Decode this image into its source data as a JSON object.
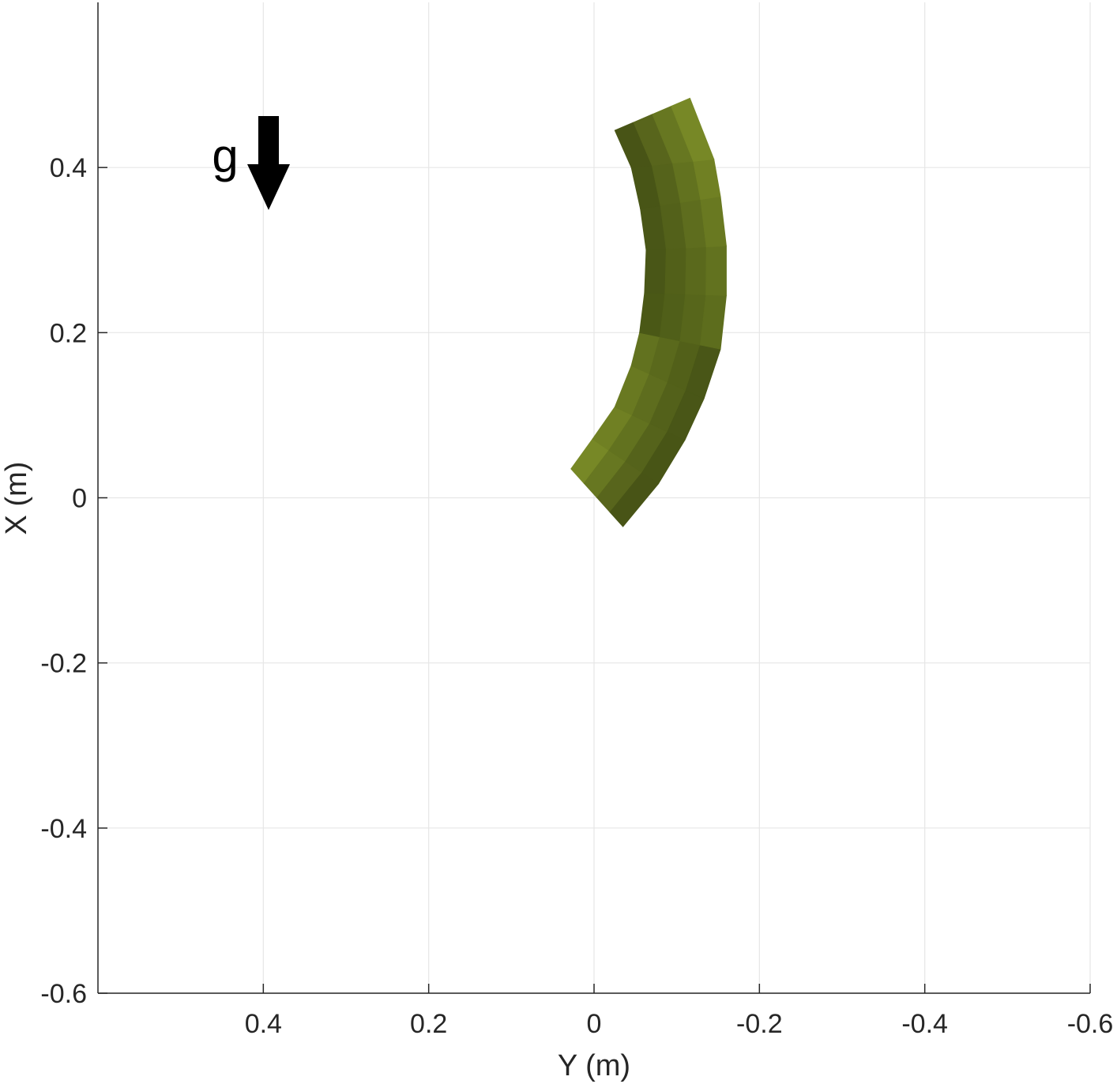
{
  "chart_data": {
    "type": "surface-topview",
    "xlabel": "Y (m)",
    "ylabel": "X (m)",
    "xlim": [
      0.6,
      -0.6
    ],
    "ylim": [
      -0.6,
      0.6
    ],
    "x_reversed": true,
    "xticks": [
      0.4,
      0.2,
      0,
      -0.2,
      -0.4,
      -0.6
    ],
    "xtick_labels": [
      "0.4",
      "0.2",
      "0",
      "-0.2",
      "-0.4",
      "-0.6"
    ],
    "yticks": [
      0.4,
      0.2,
      0,
      -0.2,
      -0.4,
      -0.6
    ],
    "ytick_labels": [
      "0.4",
      "0.2",
      "0",
      "-0.2",
      "-0.4",
      "-0.6"
    ],
    "grid": true,
    "annotation": {
      "text": "g",
      "arrow_direction": "down",
      "y": 0.4,
      "x": 0.4
    },
    "body": {
      "description_units": "Y, X in meters",
      "left_edge": [
        [
          0.028,
          0.035
        ],
        [
          0.002,
          0.071
        ],
        [
          -0.025,
          0.11
        ],
        [
          -0.045,
          0.16
        ],
        [
          -0.055,
          0.2
        ],
        [
          -0.061,
          0.248
        ],
        [
          -0.063,
          0.3
        ],
        [
          -0.056,
          0.35
        ],
        [
          -0.045,
          0.4
        ],
        [
          -0.025,
          0.445
        ]
      ],
      "right_edge": [
        [
          -0.035,
          -0.035
        ],
        [
          -0.078,
          0.017
        ],
        [
          -0.11,
          0.07
        ],
        [
          -0.133,
          0.12
        ],
        [
          -0.153,
          0.18
        ],
        [
          -0.16,
          0.245
        ],
        [
          -0.16,
          0.305
        ],
        [
          -0.153,
          0.365
        ],
        [
          -0.145,
          0.41
        ],
        [
          -0.116,
          0.484
        ]
      ],
      "colors": {
        "dark": "#3a4512",
        "mid": "#5a6e1a",
        "light": "#84962a"
      }
    }
  }
}
